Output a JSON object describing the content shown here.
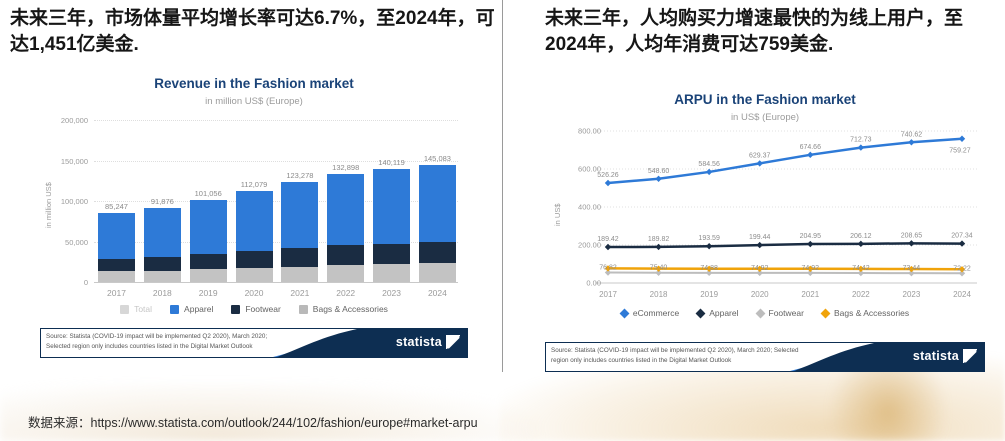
{
  "page": {
    "left_headline": "未来三年，市场体量平均增长率可达6.7%，至2024年，可达1,451亿美金.",
    "right_headline": "未来三年，人均购买力增速最快的为线上用户，至2024年，人均年消费可达759美金.",
    "bottom_source": "数据来源：https://www.statista.com/outlook/244/102/fashion/europe#market-arpu"
  },
  "statista_footer": {
    "source": "Source: Statista (COVID-19 impact will be implemented Q2 2020), March 2020; Selected region only includes countries listed in the Digital Market Outlook",
    "logo_text": "statista"
  },
  "colors": {
    "title_navy": "#1a4378",
    "blue": "#2e7ad7",
    "dark_navy": "#1a2c42",
    "light_gray": "#c3c3c3",
    "gray_line": "#bdbdbd",
    "yellow": "#f0a30a",
    "footer_navy": "#0d2e52"
  },
  "chart_data": [
    {
      "type": "bar",
      "stacked": true,
      "title": "Revenue in the Fashion market",
      "subtitle": "in million US$ (Europe)",
      "ylabel": "in million US$",
      "ylim": [
        0,
        200000
      ],
      "y_ticks": [
        "200,000",
        "150,000",
        "100,000",
        "50,000",
        "0"
      ],
      "categories": [
        "2017",
        "2018",
        "2019",
        "2020",
        "2021",
        "2022",
        "2023",
        "2024"
      ],
      "totals": [
        85247,
        91876,
        101056,
        112079,
        123278,
        132898,
        140119,
        145083
      ],
      "total_labels": [
        "85,247",
        "91,876",
        "101,056",
        "112,079",
        "123,278",
        "132,898",
        "140,119",
        "145,083"
      ],
      "series": [
        {
          "name": "Bags & Accessories",
          "color": "#c3c3c3",
          "values": [
            13000,
            14000,
            15500,
            17000,
            19000,
            20500,
            22000,
            23000
          ]
        },
        {
          "name": "Footwear",
          "color": "#1a2c42",
          "values": [
            16000,
            17000,
            18500,
            21000,
            22500,
            25000,
            25500,
            26500
          ]
        },
        {
          "name": "Apparel",
          "color": "#2e7ad7",
          "values": [
            56247,
            60876,
            67056,
            74079,
            81778,
            87398,
            92619,
            95583
          ]
        }
      ],
      "legend": [
        {
          "label": "Total",
          "color": "#d7d7d7",
          "faded": true
        },
        {
          "label": "Apparel",
          "color": "#2e7ad7",
          "faded": false
        },
        {
          "label": "Footwear",
          "color": "#1a2c42",
          "faded": false
        },
        {
          "label": "Bags & Accessories",
          "color": "#b9b9b9",
          "faded": false
        }
      ]
    },
    {
      "type": "line",
      "title": "ARPU in the Fashion market",
      "subtitle": "in US$ (Europe)",
      "ylabel": "in US$",
      "ylim": [
        0,
        800
      ],
      "y_ticks": [
        "800.00",
        "600.00",
        "400.00",
        "200.00",
        "0.00"
      ],
      "categories": [
        "2017",
        "2018",
        "2019",
        "2020",
        "2021",
        "2022",
        "2023",
        "2024"
      ],
      "series": [
        {
          "name": "eCommerce",
          "color": "#2e7ad7",
          "values": [
            526.26,
            548.6,
            584.56,
            629.37,
            674.66,
            712.73,
            740.62,
            759.27
          ],
          "labels": [
            "526.26",
            "548.60",
            "584.56",
            "629.37",
            "674.66",
            "712.73",
            "740.62",
            "759.27"
          ]
        },
        {
          "name": "Apparel",
          "color": "#1a2c42",
          "values": [
            189.42,
            189.82,
            193.59,
            199.44,
            204.95,
            206.12,
            208.65,
            207.34
          ],
          "labels": [
            "189.42",
            "189.82",
            "193.59",
            "199.44",
            "204.95",
            "206.12",
            "208.65",
            "207.34"
          ]
        },
        {
          "name": "Footwear",
          "color": "#bdbdbd",
          "values": [
            55,
            54,
            53.5,
            53.2,
            53,
            52.5,
            52,
            51
          ]
        },
        {
          "name": "Bags & Accessories",
          "color": "#f0a30a",
          "values": [
            76.82,
            75.4,
            74.88,
            74.92,
            74.92,
            74.42,
            73.44,
            72.22
          ],
          "labels": [
            "76.82",
            "75.40",
            "74.88",
            "74.92",
            "74.92",
            "74.42",
            "73.44",
            "72.22"
          ]
        }
      ],
      "legend": [
        {
          "label": "eCommerce",
          "color": "#2e7ad7",
          "faded": false
        },
        {
          "label": "Apparel",
          "color": "#1a2c42",
          "faded": false
        },
        {
          "label": "Footwear",
          "color": "#bdbdbd",
          "faded": false
        },
        {
          "label": "Bags & Accessories",
          "color": "#f0a30a",
          "faded": false
        }
      ]
    }
  ]
}
